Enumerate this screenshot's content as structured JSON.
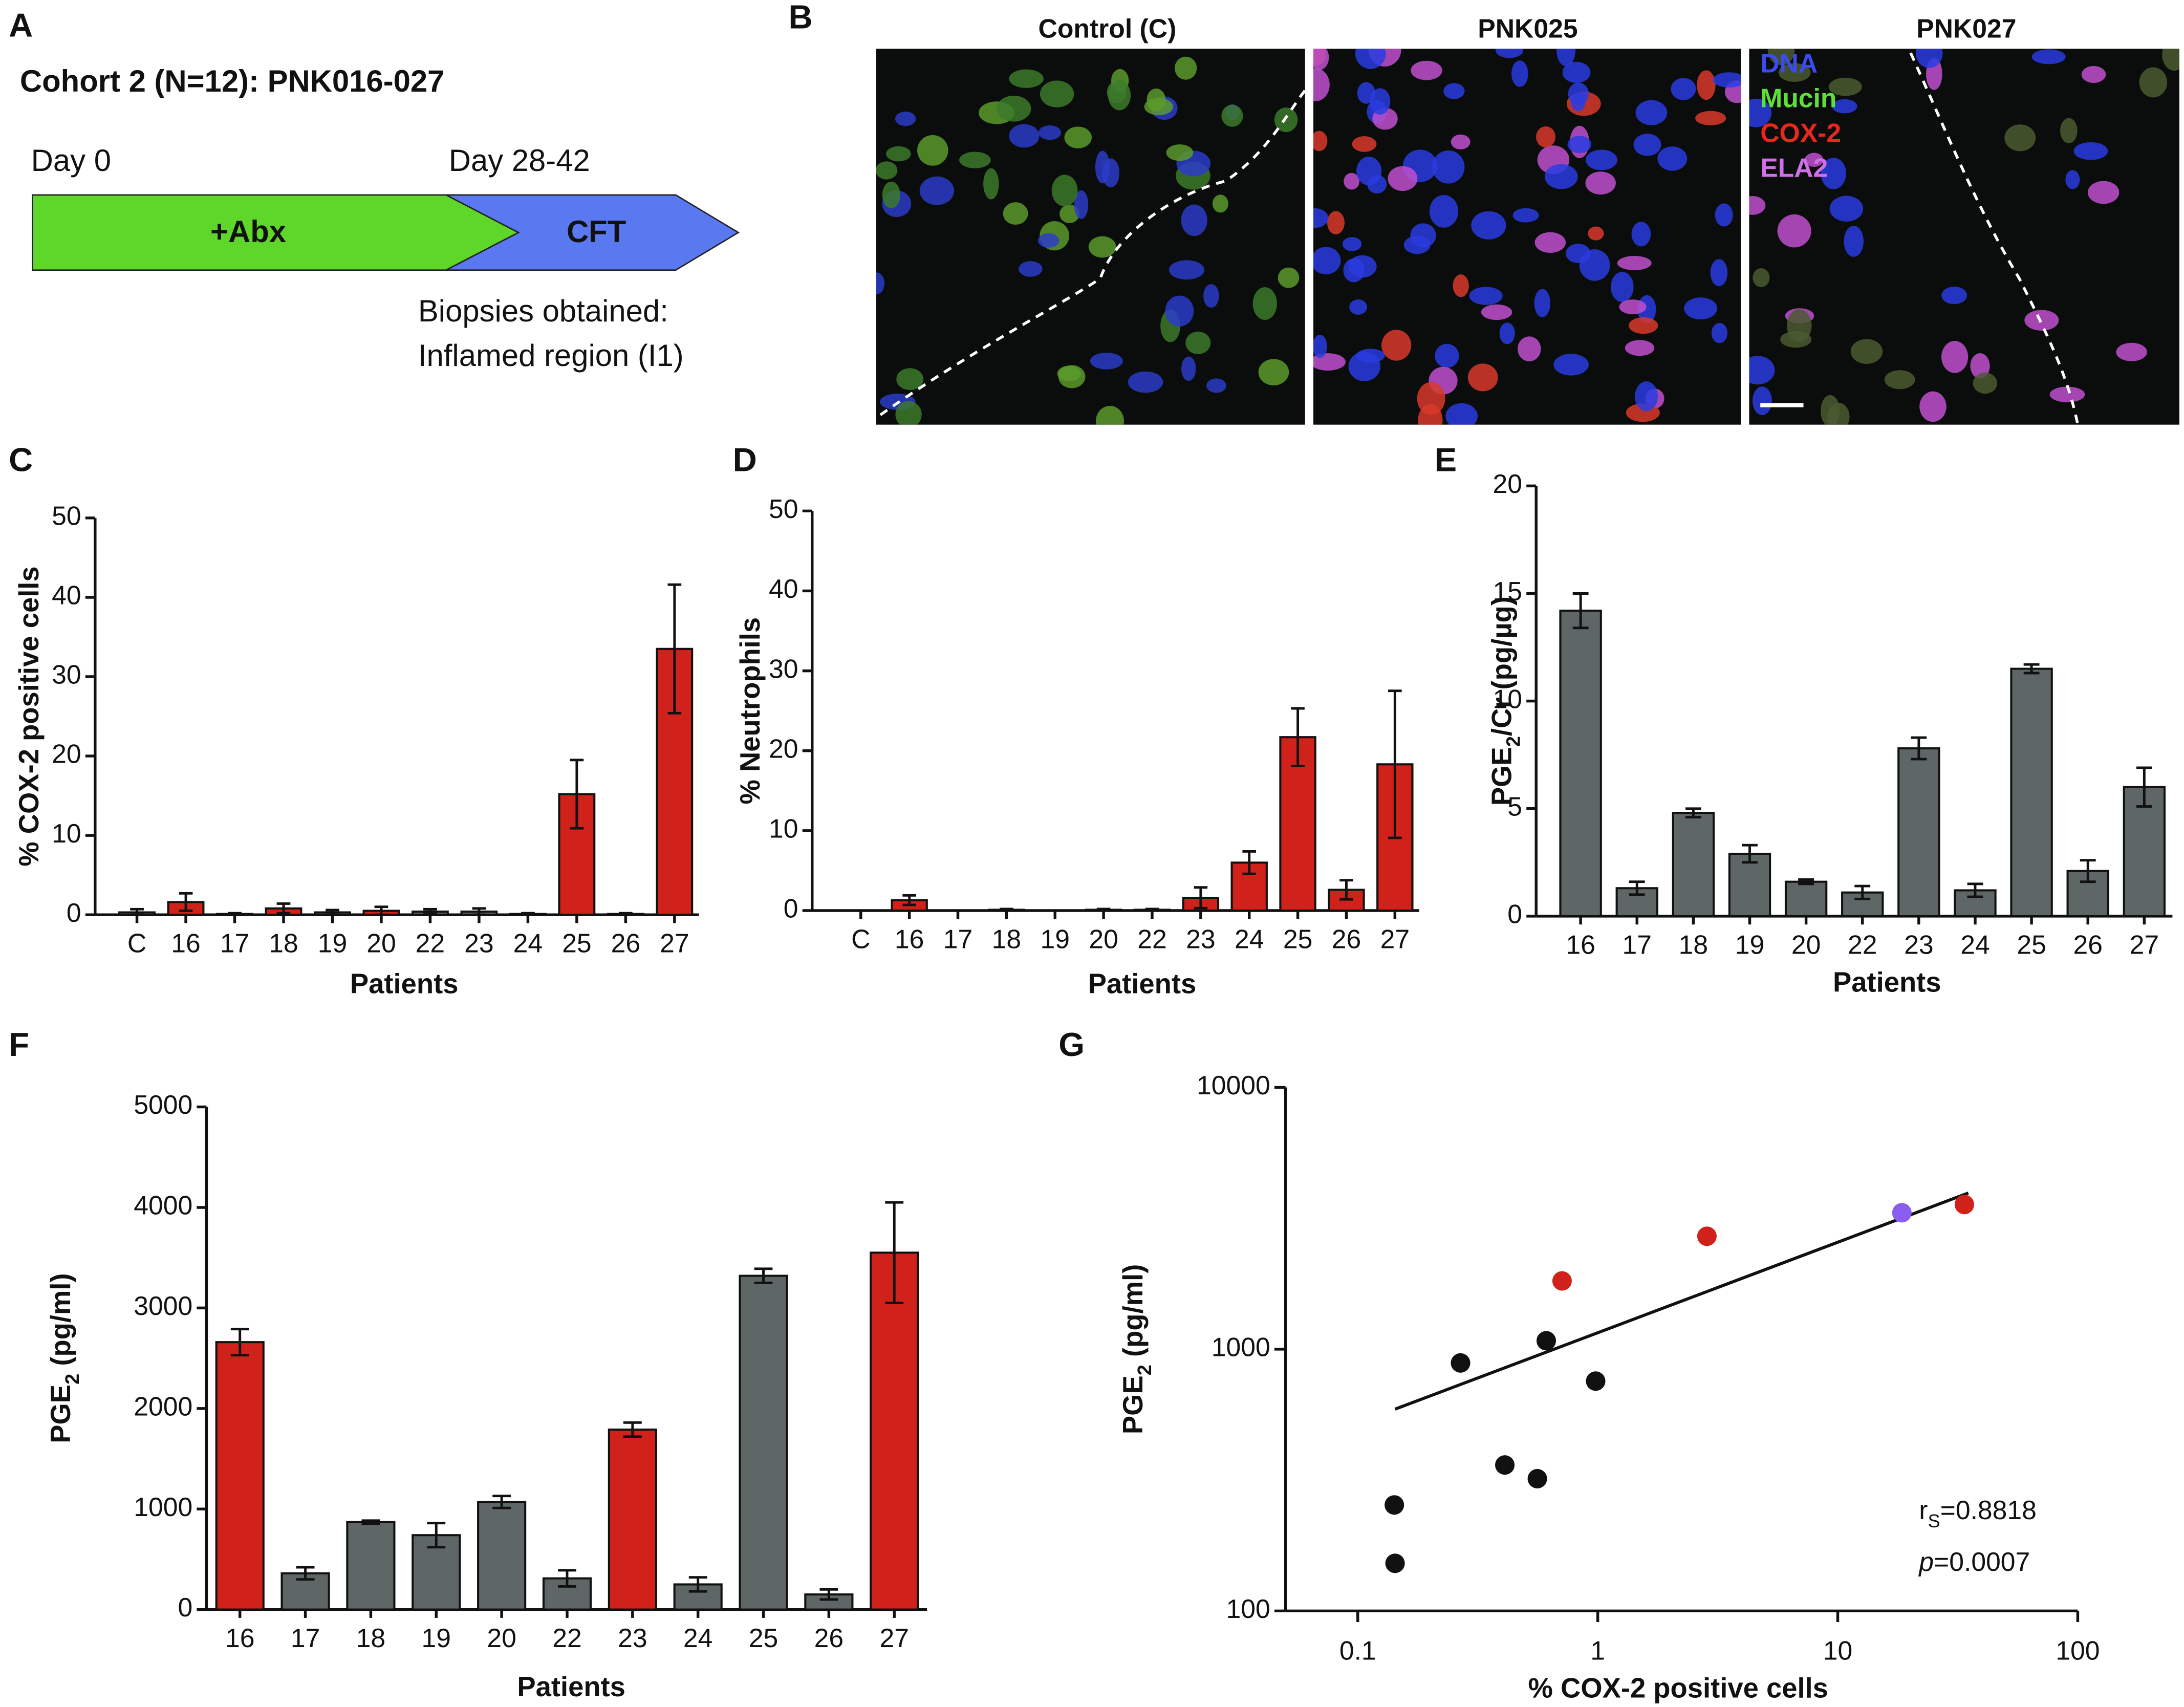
{
  "panels": [
    "A",
    "B",
    "C",
    "D",
    "E",
    "F",
    "G"
  ],
  "diagram": {
    "title": "Cohort 2 (N=12): PNK016-027",
    "start": "Day 0",
    "end": "Day 28-42",
    "phase1": "+Abx",
    "phase2": "CFT",
    "note": [
      "Biopsies obtained:",
      "Inflamed region (I1)"
    ]
  },
  "micrographs": {
    "titles": [
      "Control (C)",
      "PNK025",
      "PNK027"
    ],
    "legend": [
      {
        "name": "DNA",
        "color": "#3a4cf0"
      },
      {
        "name": "Mucin",
        "color": "#5ee03a"
      },
      {
        "name": "COX-2",
        "color": "#e8281c"
      },
      {
        "name": "ELA2",
        "color": "#d070e8"
      }
    ]
  },
  "chart_data": [
    {
      "type": "bar",
      "categories": [
        "C",
        "16",
        "17",
        "18",
        "19",
        "20",
        "22",
        "23",
        "24",
        "25",
        "26",
        "27"
      ],
      "values": [
        0.3,
        1.6,
        0.1,
        0.8,
        0.3,
        0.5,
        0.4,
        0.4,
        0.1,
        15.2,
        0.1,
        33.5
      ],
      "errors": [
        0.4,
        1.1,
        0.1,
        0.6,
        0.3,
        0.5,
        0.3,
        0.4,
        0.1,
        4.3,
        0.1,
        8.1
      ],
      "colors": [
        "#5f6766",
        "#d0221a",
        "#5f6766",
        "#d0221a",
        "#5f6766",
        "#d0221a",
        "#5f6766",
        "#5f6766",
        "#5f6766",
        "#d0221a",
        "#5f6766",
        "#d0221a"
      ],
      "y_label": "% COX-2 positive cells",
      "x_label": "Patients",
      "ylim": [
        0,
        50
      ],
      "yticks": [
        0,
        10,
        20,
        30,
        40,
        50
      ]
    },
    {
      "type": "bar",
      "categories": [
        "C",
        "16",
        "17",
        "18",
        "19",
        "20",
        "22",
        "23",
        "24",
        "25",
        "26",
        "27"
      ],
      "values": [
        0,
        1.3,
        0,
        0.1,
        0,
        0.1,
        0.1,
        1.6,
        6.0,
        21.7,
        2.6,
        18.3
      ],
      "errors": [
        0,
        0.6,
        0,
        0.1,
        0,
        0.1,
        0.1,
        1.3,
        1.4,
        3.6,
        1.2,
        9.2
      ],
      "colors": [
        "#5f6766",
        "#d0221a",
        "#5f6766",
        "#5f6766",
        "#5f6766",
        "#5f6766",
        "#5f6766",
        "#d0221a",
        "#d0221a",
        "#d0221a",
        "#d0221a",
        "#d0221a"
      ],
      "y_label": "% Neutrophils",
      "x_label": "Patients",
      "ylim": [
        0,
        50
      ],
      "yticks": [
        0,
        10,
        20,
        30,
        40,
        50
      ]
    },
    {
      "type": "bar",
      "categories": [
        "16",
        "17",
        "18",
        "19",
        "20",
        "22",
        "23",
        "24",
        "25",
        "26",
        "27"
      ],
      "values": [
        14.2,
        1.3,
        4.8,
        2.9,
        1.6,
        1.1,
        7.8,
        1.2,
        11.5,
        2.1,
        6.0
      ],
      "errors": [
        0.8,
        0.3,
        0.2,
        0.4,
        0.1,
        0.3,
        0.5,
        0.3,
        0.2,
        0.5,
        0.9
      ],
      "colors": [
        "#5f6766",
        "#5f6766",
        "#5f6766",
        "#5f6766",
        "#5f6766",
        "#5f6766",
        "#5f6766",
        "#5f6766",
        "#5f6766",
        "#5f6766",
        "#5f6766"
      ],
      "y_label": [
        "PGE",
        "2",
        "/Cr (pg/µg)"
      ],
      "x_label": "Patients",
      "ylim": [
        0,
        20
      ],
      "yticks": [
        0,
        5,
        10,
        15,
        20
      ]
    },
    {
      "type": "bar",
      "categories": [
        "16",
        "17",
        "18",
        "19",
        "20",
        "22",
        "23",
        "24",
        "25",
        "26",
        "27"
      ],
      "values": [
        2660,
        360,
        870,
        740,
        1070,
        310,
        1790,
        250,
        3320,
        150,
        3550
      ],
      "errors": [
        130,
        60,
        15,
        120,
        60,
        80,
        70,
        70,
        70,
        50,
        500
      ],
      "colors": [
        "#d0221a",
        "#5f6766",
        "#5f6766",
        "#5f6766",
        "#5f6766",
        "#5f6766",
        "#d0221a",
        "#5f6766",
        "#5f6766",
        "#5f6766",
        "#d0221a"
      ],
      "y_label": [
        "PGE",
        "2",
        " (pg/ml)"
      ],
      "x_label": "Patients",
      "ylim": [
        0,
        5000
      ],
      "yticks": [
        0,
        1000,
        2000,
        3000,
        4000,
        5000
      ]
    },
    {
      "type": "scatter",
      "xscale": "log",
      "yscale": "log",
      "x": [
        0.143,
        0.142,
        0.268,
        0.41,
        0.56,
        0.61,
        0.98,
        0.71,
        2.85,
        18.5,
        33.7
      ],
      "values": [
        152,
        254,
        886,
        361,
        320,
        1077,
        755,
        1823,
        2700,
        3320,
        3570
      ],
      "colors": [
        "#111111",
        "#111111",
        "#111111",
        "#111111",
        "#111111",
        "#111111",
        "#111111",
        "#d0221a",
        "#d0221a",
        "#8a5cf0",
        "#d0221a"
      ],
      "fit": {
        "x": [
          0.143,
          35
        ],
        "values": [
          590,
          3950
        ]
      },
      "y_label": [
        "PGE",
        "2",
        " (pg/ml)"
      ],
      "x_label": "% COX-2 positive cells",
      "annotations": [
        [
          "r",
          "S",
          "=0.8818"
        ],
        [
          "p",
          "=0.0007"
        ]
      ],
      "xlim": [
        0.05,
        100
      ],
      "xticks": [
        0.1,
        1,
        10,
        100
      ],
      "ylim": [
        100,
        10000
      ],
      "yticks": [
        100,
        1000,
        10000
      ]
    }
  ]
}
